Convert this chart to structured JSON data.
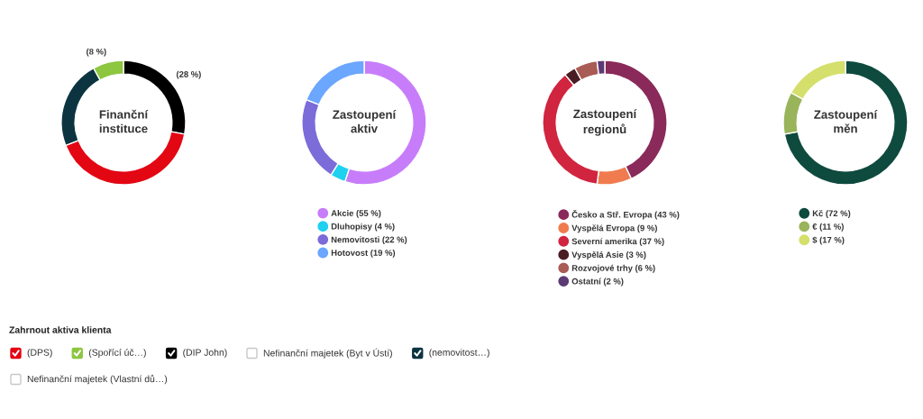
{
  "chart_data": [
    {
      "type": "donut",
      "title": "Finanční instituce",
      "categories": [
        null,
        null,
        null,
        null
      ],
      "values": [
        28,
        41,
        23,
        8
      ],
      "colors": [
        "#000000",
        "#e30613",
        "#0c3440",
        "#8dc63f"
      ],
      "value_labels": [
        "(28 %)",
        null,
        null,
        "(8 %)"
      ]
    },
    {
      "type": "donut",
      "title": "Zastoupení aktiv",
      "categories": [
        "Akcie",
        "Dluhopisy",
        "Nemovitosti",
        "Hotovost"
      ],
      "values": [
        55,
        4,
        22,
        19
      ],
      "colors": [
        "#c77dfa",
        "#1fd0f0",
        "#7b6cd9",
        "#6ba6ff"
      ],
      "value_labels": [
        "(55 %)",
        "(4 %)",
        "(22 %)",
        "(19 %)"
      ],
      "legend": "bottom"
    },
    {
      "type": "donut",
      "title": "Zastoupení regionů",
      "categories": [
        "Česko a Stř. Evropa",
        "Vyspělá Evropa",
        "Severní amerika",
        "Vyspělá Asie",
        "Rozvojové trhy",
        "Ostatní"
      ],
      "values": [
        43,
        9,
        37,
        3,
        6,
        2
      ],
      "colors": [
        "#8a2a5a",
        "#f07b4f",
        "#d0243f",
        "#4a1c24",
        "#a95b55",
        "#5c3a73"
      ],
      "value_labels": [
        "(43 %)",
        "(9 %)",
        "(37 %)",
        "(3 %)",
        "(6 %)",
        "(2 %)"
      ],
      "legend": "bottom"
    },
    {
      "type": "donut",
      "title": "Zastoupení měn",
      "categories": [
        "Kč",
        "€",
        "$"
      ],
      "values": [
        72,
        11,
        17
      ],
      "colors": [
        "#0e4a3e",
        "#99b45a",
        "#d5df6b"
      ],
      "value_labels": [
        "(72 %)",
        "(11 %)",
        "(17 %)"
      ],
      "legend": "bottom"
    },
    {
      "type": "other",
      "title": "Zahrnout aktiva klienta",
      "annotations": [
        "(DPS)",
        "(Spořící úč…)",
        "(DIP John)",
        "Nefinanční majetek (Byt v Ústí)",
        "(nemovitost…)",
        "Nefinanční majetek (Vlastní dů…)"
      ],
      "colors": [
        "#e30613",
        "#8dc63f",
        "#000000",
        null,
        "#0c3440",
        null
      ]
    }
  ]
}
